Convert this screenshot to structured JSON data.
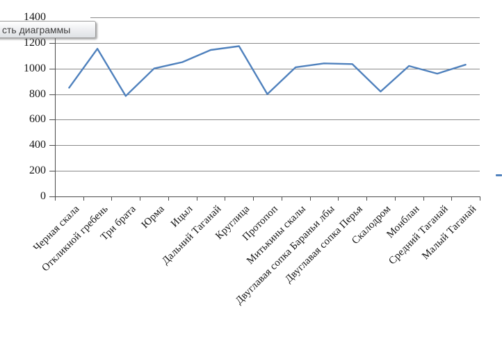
{
  "tooltip": {
    "text": "сть диаграммы"
  },
  "chart_data": {
    "type": "line",
    "title": "",
    "xlabel": "",
    "ylabel": "",
    "categories": [
      "Черная скала",
      "Откликной гребень",
      "Три брата",
      "Юрма",
      "Ицыл",
      "Дальний Таганай",
      "Круглица",
      "Протопоп",
      "Митькины скалы",
      "Двуглавая сопка Бараньи лбы",
      "Двуглавая сопка Перья",
      "Скалодром",
      "Монблан",
      "Средний Таганай",
      "Малый Таганай"
    ],
    "values": [
      850,
      1155,
      785,
      1000,
      1050,
      1145,
      1175,
      800,
      1010,
      1040,
      1035,
      820,
      1020,
      960,
      1030
    ],
    "ylim": [
      0,
      1400
    ],
    "yticks": [
      0,
      200,
      400,
      600,
      800,
      1000,
      1200,
      1400
    ],
    "grid": true,
    "legend": false,
    "line_color": "#4F81BD",
    "axis_color": "#4a4a4a",
    "gridline_color": "#898989"
  },
  "artifacts": {
    "selection_dash_color": "#4F81BD"
  }
}
